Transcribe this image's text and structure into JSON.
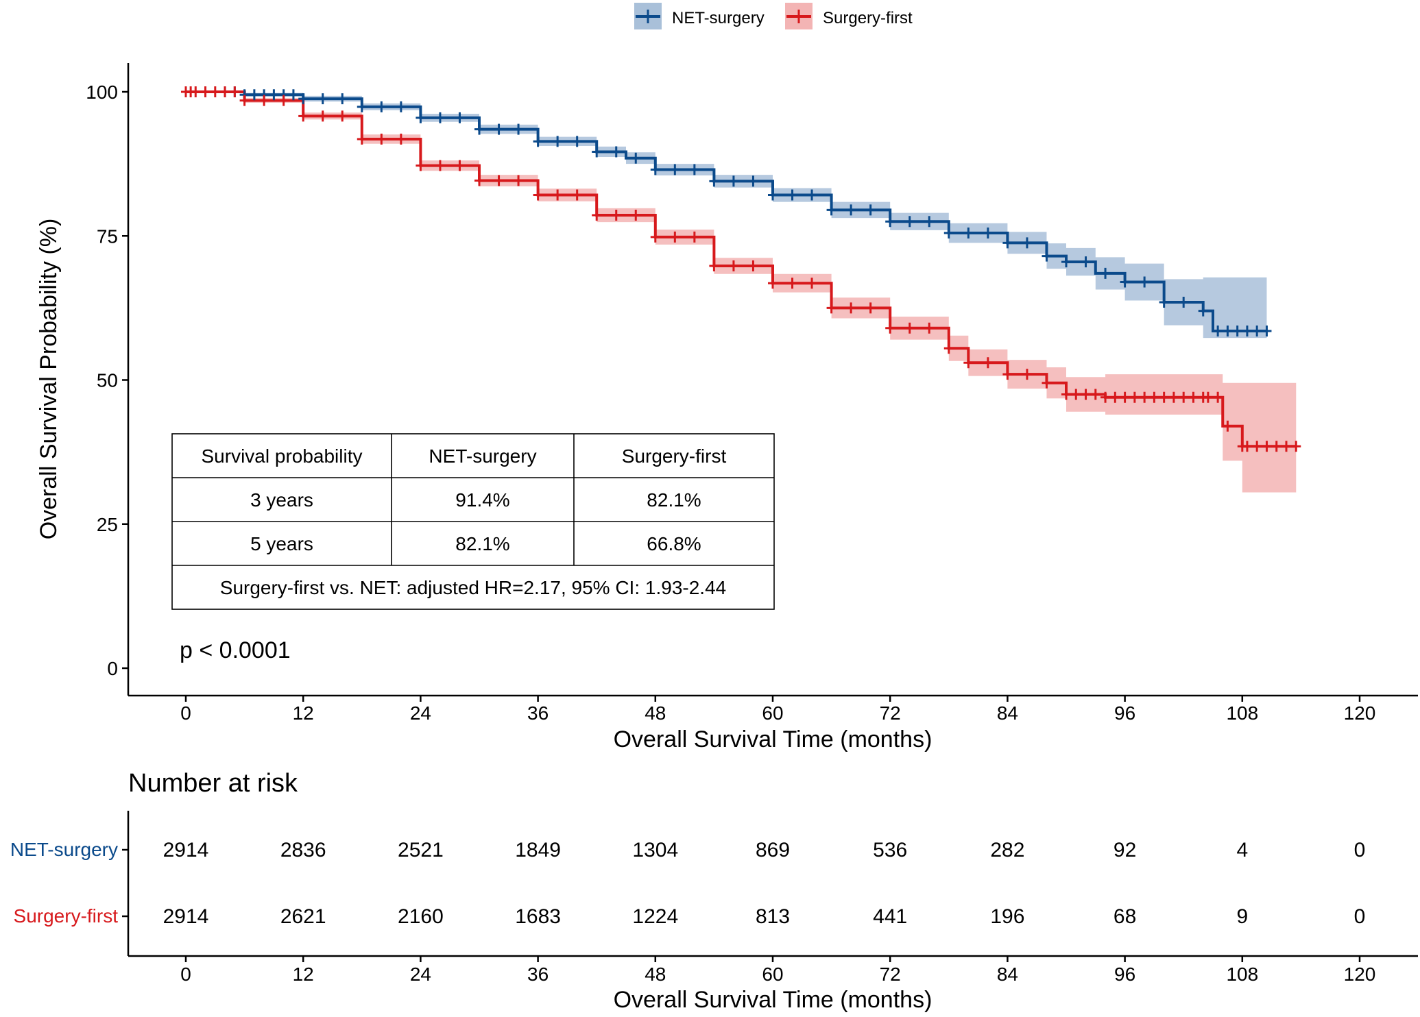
{
  "chart_data": {
    "type": "line",
    "subtype": "kaplan-meier",
    "title": "",
    "xlabel": "Overall Survival Time (months)",
    "ylabel": "Overall Survival Probability (%)",
    "xlim": [
      0,
      120
    ],
    "ylim": [
      0,
      100
    ],
    "x_ticks": [
      0,
      12,
      24,
      36,
      48,
      60,
      72,
      84,
      96,
      108,
      120
    ],
    "y_ticks": [
      0,
      25,
      50,
      75,
      100
    ],
    "grid": false,
    "legend_position": "top",
    "p_value": "p < 0.0001",
    "series": [
      {
        "name": "NET-surgery",
        "color": "#0b4a8b",
        "band_color": "#a9c0d9",
        "x": [
          0,
          6,
          12,
          18,
          24,
          30,
          36,
          42,
          45,
          48,
          54,
          60,
          66,
          72,
          78,
          84,
          88,
          90,
          93,
          96,
          100,
          104,
          105,
          108,
          110.5
        ],
        "y": [
          100,
          99.5,
          98.8,
          97.4,
          95.5,
          93.5,
          91.4,
          89.6,
          88.5,
          86.5,
          84.5,
          82.1,
          79.5,
          77.5,
          75.5,
          73.8,
          71.5,
          70.5,
          68.5,
          67,
          63.5,
          62,
          58.5,
          58.5,
          58.5
        ],
        "lower": [
          100,
          99.2,
          98.3,
          96.8,
          94.8,
          92.7,
          90.6,
          88.7,
          87.5,
          85.5,
          83.4,
          80.9,
          78.1,
          76,
          73.8,
          71.9,
          69.3,
          68.1,
          65.7,
          63.8,
          59.5,
          57.3,
          57.3,
          57.3,
          57.3
        ],
        "upper": [
          100,
          99.8,
          99.3,
          98,
          96.2,
          94.3,
          92.2,
          90.5,
          89.5,
          87.5,
          85.6,
          83.3,
          80.9,
          79,
          77.2,
          75.7,
          73.7,
          72.9,
          71.3,
          70.2,
          67.5,
          67.8,
          67.8,
          67.8,
          67.8
        ],
        "censor_x": [
          4,
          5,
          6,
          7,
          8,
          9,
          10,
          11,
          12,
          14,
          16,
          18,
          20,
          22,
          24,
          26,
          28,
          30,
          32,
          34,
          36,
          38,
          40,
          42,
          44,
          46,
          48,
          50,
          52,
          54,
          56,
          58,
          60,
          62,
          64,
          66,
          68,
          70,
          72,
          74,
          76,
          78,
          80,
          82,
          84,
          86,
          88,
          90,
          92,
          94,
          96,
          98,
          100,
          102,
          104,
          105.5,
          106.5,
          107.5,
          108.5,
          109.5,
          110.5
        ]
      },
      {
        "name": "Surgery-first",
        "color": "#d7191c",
        "band_color": "#f3b4b4",
        "x": [
          0,
          6,
          12,
          18,
          24,
          30,
          36,
          42,
          48,
          54,
          60,
          66,
          72,
          78,
          80,
          84,
          88,
          90,
          94,
          98,
          101,
          105,
          106,
          108,
          113.5
        ],
        "y": [
          100,
          98.5,
          95.8,
          91.8,
          87.2,
          84.6,
          82.1,
          78.6,
          74.8,
          69.8,
          66.8,
          62.5,
          59,
          55.5,
          53,
          51,
          49.5,
          47.5,
          47,
          47,
          47,
          47,
          42,
          38.5,
          38.5
        ],
        "lower": [
          100,
          98.1,
          95.2,
          91,
          86.3,
          83.6,
          81,
          77.4,
          73.5,
          68.4,
          65.2,
          60.7,
          57,
          53.3,
          50.7,
          48.5,
          46.8,
          44.5,
          44,
          44,
          44,
          44,
          36,
          30.5,
          30.5
        ],
        "upper": [
          100,
          98.9,
          96.4,
          92.6,
          88.1,
          85.6,
          83.2,
          79.8,
          76.1,
          71.2,
          68.4,
          64.3,
          61,
          57.7,
          55.3,
          53.5,
          52.2,
          50.5,
          51,
          51,
          51,
          51,
          49.5,
          49.5,
          49.5
        ],
        "censor_x": [
          0,
          0.5,
          1,
          2,
          3,
          4,
          5,
          6,
          8,
          10,
          12,
          14,
          16,
          18,
          20,
          22,
          24,
          26,
          28,
          30,
          32,
          34,
          36,
          38,
          40,
          42,
          44,
          46,
          48,
          50,
          52,
          54,
          56,
          58,
          60,
          62,
          64,
          66,
          68,
          70,
          72,
          74,
          76,
          78,
          80,
          82,
          84,
          86,
          88,
          90,
          91,
          92,
          93,
          94,
          95,
          96,
          97,
          98,
          99,
          100,
          101,
          102,
          103,
          104,
          104.5,
          105.5,
          106.5,
          108,
          108.5,
          109.5,
          110.5,
          111.5,
          112.5,
          113.5
        ]
      }
    ],
    "summary_table": {
      "headers": [
        "Survival probability",
        "NET-surgery",
        "Surgery-first"
      ],
      "rows": [
        [
          "3 years",
          "91.4%",
          "82.1%"
        ],
        [
          "5 years",
          "82.1%",
          "66.8%"
        ]
      ],
      "footer": "Surgery-first vs. NET: adjusted HR=2.17, 95% CI: 1.93-2.44"
    },
    "risk_table": {
      "title": "Number at risk",
      "xlabel": "Overall Survival Time (months)",
      "times": [
        0,
        12,
        24,
        36,
        48,
        60,
        72,
        84,
        96,
        108,
        120
      ],
      "groups": [
        {
          "name": "NET-surgery",
          "color": "#0b4a8b",
          "counts": [
            "2914",
            "2836",
            "2521",
            "1849",
            "1304",
            "869",
            "536",
            "282",
            "92",
            "4",
            "0"
          ]
        },
        {
          "name": "Surgery-first",
          "color": "#d7191c",
          "counts": [
            "2914",
            "2621",
            "2160",
            "1683",
            "1224",
            "813",
            "441",
            "196",
            "68",
            "9",
            "0"
          ]
        }
      ]
    }
  }
}
